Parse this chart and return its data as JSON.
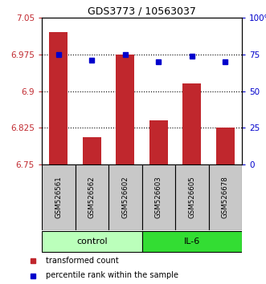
{
  "title": "GDS3773 / 10563037",
  "samples": [
    "GSM526561",
    "GSM526562",
    "GSM526602",
    "GSM526603",
    "GSM526605",
    "GSM526678"
  ],
  "red_values": [
    7.02,
    6.805,
    6.975,
    6.84,
    6.915,
    6.825
  ],
  "blue_values": [
    75,
    71,
    75,
    70,
    74,
    70
  ],
  "ylim_left": [
    6.75,
    7.05
  ],
  "yticks_left": [
    6.75,
    6.825,
    6.9,
    6.975,
    7.05
  ],
  "yticks_right": [
    0,
    25,
    50,
    75,
    100
  ],
  "bar_color": "#C0272D",
  "dot_color": "#0000CC",
  "control_color": "#BBFFBB",
  "il6_color": "#33DD33",
  "bg_color": "#C8C8C8",
  "legend_red": "transformed count",
  "legend_blue": "percentile rank within the sample"
}
